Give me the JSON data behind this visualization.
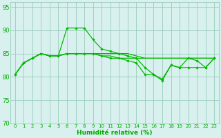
{
  "xlabel": "Humidité relative (%)",
  "background_color": "#d8f0ee",
  "grid_color": "#99ccbb",
  "line_color": "#00bb00",
  "xlim": [
    -0.5,
    23.5
  ],
  "ylim": [
    70,
    96
  ],
  "yticks": [
    70,
    75,
    80,
    85,
    90,
    95
  ],
  "xticks": [
    0,
    1,
    2,
    3,
    4,
    5,
    6,
    7,
    8,
    9,
    10,
    11,
    12,
    13,
    14,
    15,
    16,
    17,
    18,
    19,
    20,
    21,
    22,
    23
  ],
  "series": [
    [
      80.5,
      83,
      84,
      85,
      84.5,
      84.5,
      90.5,
      90.5,
      90.5,
      88,
      86,
      85.5,
      85,
      84.5,
      84,
      82,
      80.5,
      79.5,
      82.5,
      82,
      84,
      83.5,
      82,
      84
    ],
    [
      80.5,
      83,
      84,
      85,
      84.5,
      84.5,
      85,
      85,
      85,
      85,
      84.5,
      84.5,
      84,
      84,
      84,
      84,
      84,
      84,
      84,
      84,
      84,
      84,
      84,
      84
    ],
    [
      80.5,
      83,
      84,
      85,
      84.5,
      84.5,
      85,
      85,
      85,
      85,
      84.5,
      84,
      84,
      83.5,
      83,
      80.5,
      80.5,
      79.2,
      82.5,
      82,
      82,
      82,
      82,
      84
    ],
    [
      80.5,
      83,
      84,
      85,
      84.5,
      84.5,
      85,
      85,
      85,
      85,
      85,
      85,
      85,
      85,
      84.5,
      84,
      84,
      84,
      84,
      84,
      84,
      84,
      84,
      84
    ]
  ],
  "markers": [
    true,
    false,
    true,
    false
  ]
}
